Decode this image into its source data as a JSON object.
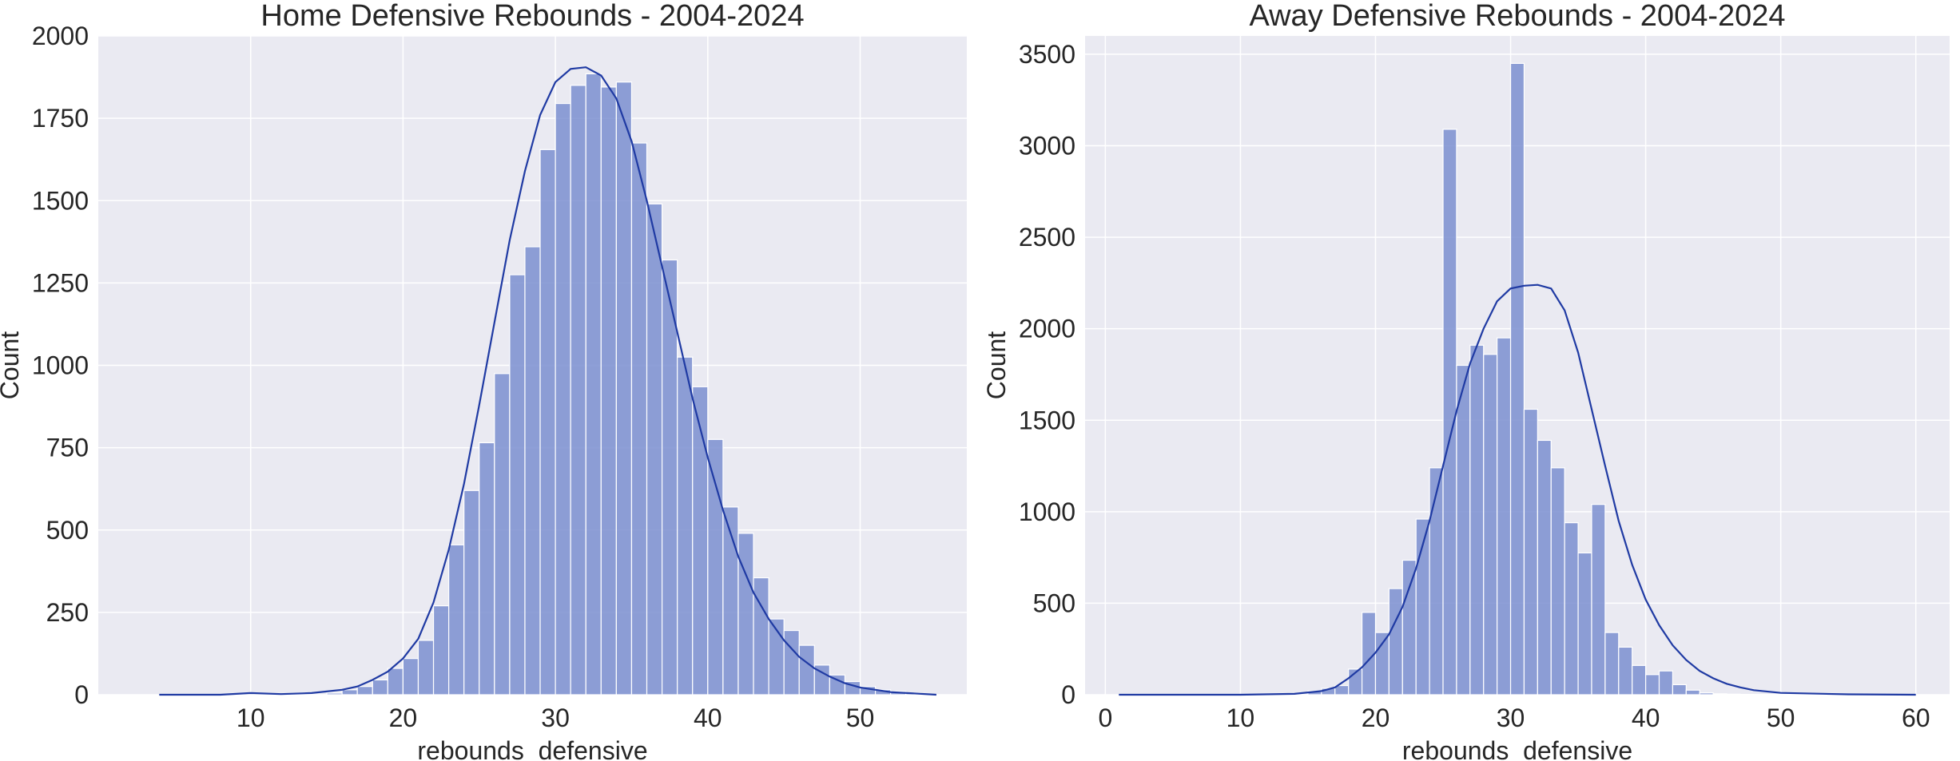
{
  "chart_data": [
    {
      "type": "histogram",
      "title": "Home Defensive Rebounds - 2004-2024",
      "xlabel": "rebounds_defensive",
      "ylabel": "Count",
      "xlim": [
        0,
        57
      ],
      "ylim": [
        0,
        2000
      ],
      "xticks": [
        10,
        20,
        30,
        40,
        50
      ],
      "yticks": [
        0,
        250,
        500,
        750,
        1000,
        1250,
        1500,
        1750,
        2000
      ],
      "grid": true,
      "bin_edges": [
        4,
        5,
        6,
        7,
        8,
        9,
        10,
        11,
        12,
        13,
        14,
        15,
        16,
        17,
        18,
        19,
        20,
        21,
        22,
        23,
        24,
        25,
        26,
        27,
        28,
        29,
        30,
        31,
        32,
        33,
        34,
        35,
        36,
        37,
        38,
        39,
        40,
        41,
        42,
        43,
        44,
        45,
        46,
        47,
        48,
        49,
        50,
        51,
        52,
        53,
        54,
        55
      ],
      "counts": [
        0,
        0,
        0,
        0,
        0,
        0,
        0,
        0,
        0,
        0,
        0,
        5,
        15,
        25,
        45,
        80,
        110,
        165,
        270,
        455,
        620,
        765,
        975,
        1275,
        1360,
        1655,
        1795,
        1850,
        1885,
        1845,
        1860,
        1675,
        1490,
        1320,
        1025,
        935,
        775,
        570,
        490,
        355,
        230,
        195,
        150,
        90,
        60,
        40,
        25,
        15,
        10,
        5,
        0
      ],
      "kde": {
        "x": [
          4,
          6,
          8,
          10,
          12,
          14,
          16,
          17,
          18,
          19,
          20,
          21,
          22,
          23,
          24,
          25,
          26,
          27,
          28,
          29,
          30,
          31,
          32,
          33,
          34,
          35,
          36,
          37,
          38,
          39,
          40,
          41,
          42,
          43,
          44,
          45,
          46,
          47,
          48,
          49,
          50,
          52,
          55
        ],
        "y": [
          0,
          0,
          0,
          5,
          2,
          5,
          15,
          25,
          45,
          70,
          110,
          170,
          280,
          440,
          640,
          880,
          1130,
          1380,
          1590,
          1760,
          1860,
          1900,
          1905,
          1880,
          1810,
          1680,
          1500,
          1300,
          1100,
          900,
          720,
          560,
          420,
          310,
          230,
          165,
          115,
          80,
          55,
          35,
          22,
          8,
          0
        ]
      }
    },
    {
      "type": "histogram",
      "title": "Away Defensive Rebounds - 2004-2024",
      "xlabel": "rebounds_defensive",
      "ylabel": "Count",
      "xlim": [
        -1.5,
        62.5
      ],
      "ylim": [
        0,
        3600
      ],
      "xticks": [
        0,
        10,
        20,
        30,
        40,
        50,
        60
      ],
      "yticks": [
        0,
        500,
        1000,
        1500,
        2000,
        2500,
        3000,
        3500
      ],
      "grid": true,
      "bin_edges": [
        15,
        16,
        17,
        18,
        19,
        20,
        21,
        22,
        23,
        24,
        25,
        26,
        27,
        28,
        29,
        30,
        31,
        32,
        33,
        34,
        35,
        36,
        37,
        38,
        39,
        40,
        41,
        42,
        43,
        44,
        45,
        46,
        47,
        48,
        49,
        50,
        51,
        52
      ],
      "counts": [
        20,
        35,
        50,
        140,
        450,
        340,
        580,
        735,
        960,
        1240,
        3090,
        1800,
        1910,
        1860,
        1950,
        3450,
        1560,
        1390,
        1240,
        940,
        775,
        1040,
        340,
        260,
        160,
        110,
        130,
        55,
        25,
        10,
        5,
        3,
        2,
        1,
        1,
        1,
        1
      ],
      "kde": {
        "x": [
          1,
          5,
          10,
          14,
          16,
          17,
          18,
          19,
          20,
          21,
          22,
          23,
          24,
          25,
          26,
          27,
          28,
          29,
          30,
          31,
          32,
          33,
          34,
          35,
          36,
          37,
          38,
          39,
          40,
          41,
          42,
          43,
          44,
          45,
          46,
          47,
          48,
          50,
          55,
          60
        ],
        "y": [
          0,
          0,
          0,
          5,
          20,
          40,
          90,
          150,
          230,
          330,
          480,
          690,
          950,
          1250,
          1550,
          1810,
          2000,
          2150,
          2220,
          2235,
          2240,
          2220,
          2100,
          1870,
          1560,
          1250,
          950,
          710,
          520,
          380,
          270,
          190,
          130,
          90,
          60,
          40,
          25,
          10,
          2,
          0
        ]
      }
    }
  ]
}
